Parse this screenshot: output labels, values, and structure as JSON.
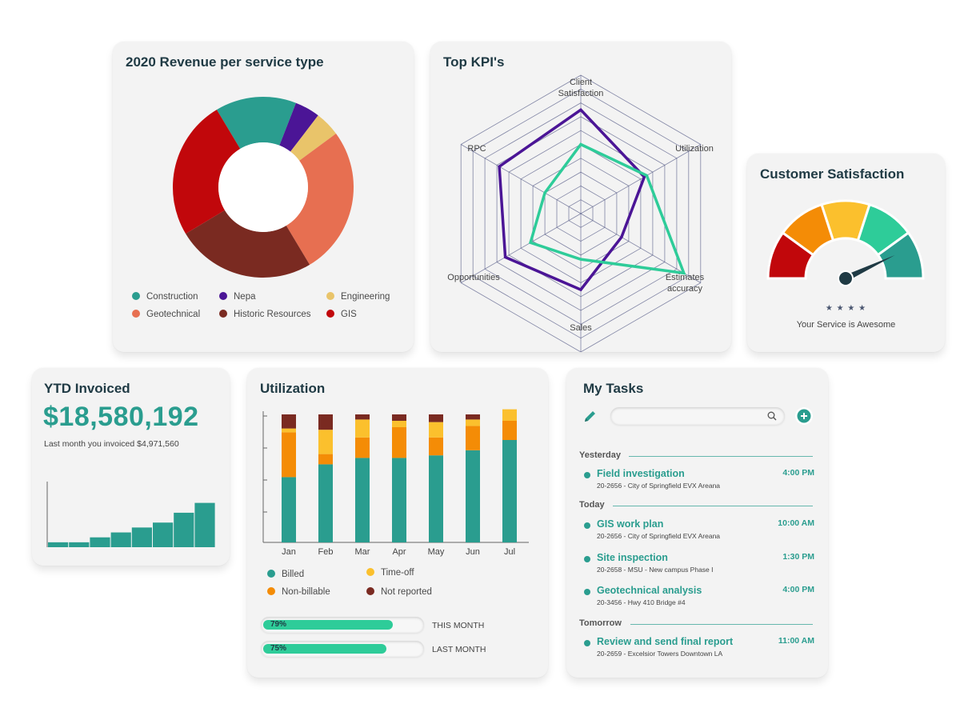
{
  "revenue": {
    "title": "2020 Revenue per service type",
    "legend": [
      {
        "label": "Construction",
        "color": "#2a9d8f"
      },
      {
        "label": "Nepa",
        "color": "#4b1596"
      },
      {
        "label": "Engineering",
        "color": "#e9c46a"
      },
      {
        "label": "Geotechnical",
        "color": "#e76f51"
      },
      {
        "label": "Historic Resources",
        "color": "#7a2a21"
      },
      {
        "label": "GIS",
        "color": "#c1070b"
      }
    ]
  },
  "kpi": {
    "title": "Top KPI's",
    "axes": [
      "Client\nSatisfaction",
      "Utilization",
      "Estimates\naccuracy",
      "Sales",
      "Opportunities",
      "RPC"
    ]
  },
  "satisfaction": {
    "title": "Customer Satisfaction",
    "stars": "★ ★ ★ ★",
    "caption": "Your Service is Awesome",
    "colors": [
      "#c1070b",
      "#f48c06",
      "#fbc02d",
      "#2ecc99",
      "#2a9d8f"
    ]
  },
  "ytd": {
    "title": "YTD Invoiced",
    "amount": "$18,580,192",
    "subtitle": "Last month you invoiced $4,971,560",
    "bars_color": "#2a9d8f"
  },
  "utilization": {
    "title": "Utilization",
    "legend": [
      {
        "label": "Billed",
        "color": "#2a9d8f"
      },
      {
        "label": "Time-off",
        "color": "#fbc02d"
      },
      {
        "label": "Non-billable",
        "color": "#f48c06"
      },
      {
        "label": "Not reported",
        "color": "#7a2a21"
      }
    ],
    "progress": [
      {
        "pct_label": "79%",
        "value": 0.79,
        "label": "THIS MONTH"
      },
      {
        "pct_label": "75%",
        "value": 0.75,
        "label": "LAST MONTH"
      }
    ]
  },
  "tasks": {
    "title": "My Tasks",
    "sections": [
      {
        "label": "Yesterday",
        "items": [
          {
            "title": "Field investigation",
            "sub": "20-2656 - City of Springfield EVX Areana",
            "time": "4:00 PM"
          }
        ]
      },
      {
        "label": "Today",
        "items": [
          {
            "title": "GIS work plan",
            "sub": "20-2656 - City of Springfield EVX Areana",
            "time": "10:00 AM"
          },
          {
            "title": "Site inspection",
            "sub": "20-2658 - MSU - New campus Phase I",
            "time": "1:30 PM"
          },
          {
            "title": "Geotechnical analysis",
            "sub": "20-3456 - Hwy 410 Bridge #4",
            "time": "4:00 PM"
          }
        ]
      },
      {
        "label": "Tomorrow",
        "items": [
          {
            "title": "Review and send final report",
            "sub": "20-2659 - Excelsior Towers Downtown LA",
            "time": "11:00 AM"
          }
        ]
      }
    ]
  },
  "chart_data": [
    {
      "type": "pie",
      "categories": [
        "Construction",
        "Nepa",
        "Engineering",
        "Geotechnical",
        "Historic Resources",
        "GIS"
      ],
      "values": [
        14.5,
        4.5,
        4.5,
        26.5,
        25,
        25
      ]
    },
    {
      "type": "radar",
      "axes": [
        "Client Satisfaction",
        "Utilization",
        "Estimates accuracy",
        "Sales",
        "Opportunities",
        "RPC"
      ],
      "max": 10,
      "series": [
        {
          "color": "#4b1596",
          "values": [
            7.5,
            5.3,
            3.4,
            5.5,
            6.3,
            6.8
          ]
        },
        {
          "color": "#2ecc99",
          "values": [
            5.0,
            5.5,
            8.6,
            3.3,
            4.2,
            3.0
          ]
        }
      ]
    },
    {
      "type": "gauge",
      "value": 0.86
    },
    {
      "type": "bar",
      "values": [
        1,
        1,
        2,
        3,
        4,
        5,
        7,
        9
      ],
      "ylim": [
        0,
        13
      ]
    },
    {
      "type": "bar",
      "stacked": true,
      "categories": [
        "Jan",
        "Feb",
        "Mar",
        "Apr",
        "May",
        "Jun",
        "Jul"
      ],
      "ylim": [
        0,
        100
      ],
      "series": [
        {
          "name": "Billed",
          "color": "#2a9d8f",
          "values": [
            51,
            61,
            66,
            66,
            68,
            72,
            80
          ]
        },
        {
          "name": "Non-billable",
          "color": "#f48c06",
          "values": [
            35,
            8,
            16,
            24,
            14,
            19,
            15
          ]
        },
        {
          "name": "Time-off",
          "color": "#fbc02d",
          "values": [
            3,
            19,
            14,
            5,
            12,
            5,
            9
          ]
        },
        {
          "name": "Not reported",
          "color": "#7a2a21",
          "values": [
            11,
            12,
            4,
            5,
            6,
            4,
            0
          ]
        }
      ]
    }
  ]
}
